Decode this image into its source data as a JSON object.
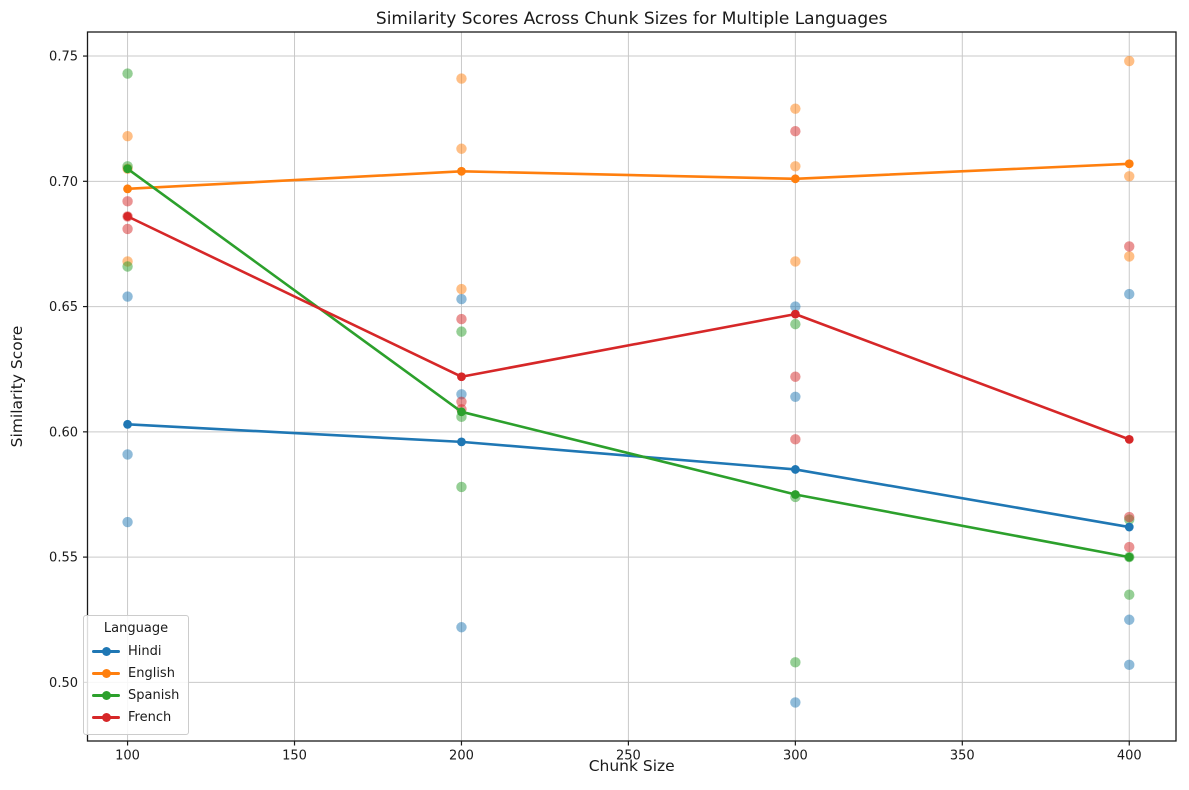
{
  "chart_data": {
    "type": "line",
    "title": "Similarity Scores Across Chunk Sizes for Multiple Languages",
    "xlabel": "Chunk Size",
    "ylabel": "Similarity Score",
    "legend_title": "Language",
    "legend_position": "lower left",
    "grid": true,
    "x": [
      100,
      200,
      300,
      400
    ],
    "xtick_labels": [
      "100",
      "150",
      "200",
      "250",
      "300",
      "350",
      "400"
    ],
    "xtick_values": [
      100,
      150,
      200,
      250,
      300,
      350,
      400
    ],
    "ytick_labels": [
      "0.50",
      "0.55",
      "0.60",
      "0.65",
      "0.70",
      "0.75"
    ],
    "ytick_values": [
      0.5,
      0.55,
      0.6,
      0.65,
      0.7,
      0.75
    ],
    "xlim": [
      88,
      414
    ],
    "ylim": [
      0.4766,
      0.7596
    ],
    "series": [
      {
        "name": "Hindi",
        "color": "#1f77b4",
        "mean_values": [
          0.603,
          0.596,
          0.585,
          0.562
        ],
        "scatter_values": [
          [
            0.654,
            0.591,
            0.564
          ],
          [
            0.653,
            0.615,
            0.522
          ],
          [
            0.65,
            0.614,
            0.492
          ],
          [
            0.655,
            0.525,
            0.507
          ]
        ]
      },
      {
        "name": "English",
        "color": "#ff7f0e",
        "mean_values": [
          0.697,
          0.704,
          0.701,
          0.707
        ],
        "scatter_values": [
          [
            0.718,
            0.705,
            0.668
          ],
          [
            0.741,
            0.713,
            0.657
          ],
          [
            0.729,
            0.706,
            0.668
          ],
          [
            0.748,
            0.702,
            0.67
          ]
        ]
      },
      {
        "name": "Spanish",
        "color": "#2ca02c",
        "mean_values": [
          0.705,
          0.608,
          0.575,
          0.55
        ],
        "scatter_values": [
          [
            0.743,
            0.706,
            0.666
          ],
          [
            0.64,
            0.606,
            0.578
          ],
          [
            0.643,
            0.574,
            0.508
          ],
          [
            0.565,
            0.55,
            0.535
          ]
        ]
      },
      {
        "name": "French",
        "color": "#d62728",
        "mean_values": [
          0.686,
          0.622,
          0.647,
          0.597
        ],
        "scatter_values": [
          [
            0.692,
            0.686,
            0.681
          ],
          [
            0.645,
            0.612,
            0.609
          ],
          [
            0.72,
            0.622,
            0.597
          ],
          [
            0.674,
            0.566,
            0.554
          ]
        ]
      }
    ]
  }
}
